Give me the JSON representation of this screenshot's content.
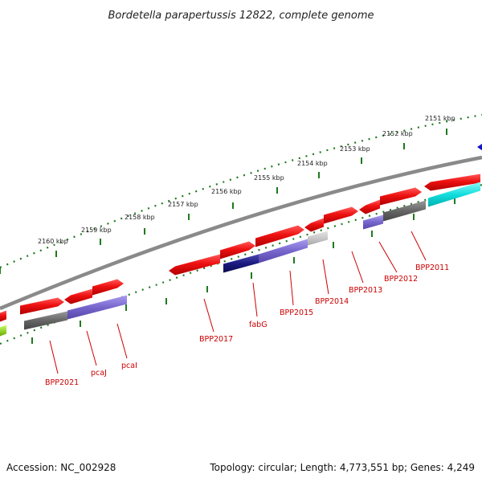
{
  "title": "Bordetella parapertussis 12822, complete genome",
  "footer": {
    "accession": "Accession: NC_002928",
    "summary": "Topology: circular; Length: 4,773,551 bp; Genes: 4,249"
  },
  "ruler": {
    "labels": [
      "2151 kbp",
      "2152 kbp",
      "2153 kbp",
      "2154 kbp",
      "2155 kbp",
      "2156 kbp",
      "2157 kbp",
      "2158 kbp",
      "2159 kbp",
      "2160 kbp"
    ]
  },
  "genes": [
    "BPP2011",
    "BPP2012",
    "BPP2013",
    "BPP2014",
    "BPP2015",
    "fabG",
    "BPP2017",
    "pcaI",
    "pcaJ",
    "BPP2021"
  ],
  "colors": {
    "backbone": "#8a8a8a",
    "ruler": "#1e7a1e",
    "gene_red": "#ee1111",
    "gene_gray": "#666666",
    "gene_purple": "#7766cc",
    "gene_cyan": "#11dddd",
    "gene_navy": "#1a1a80",
    "gene_blue": "#0000cc",
    "gene_lightgray": "#c8c8c8",
    "label": "#cc0000"
  }
}
